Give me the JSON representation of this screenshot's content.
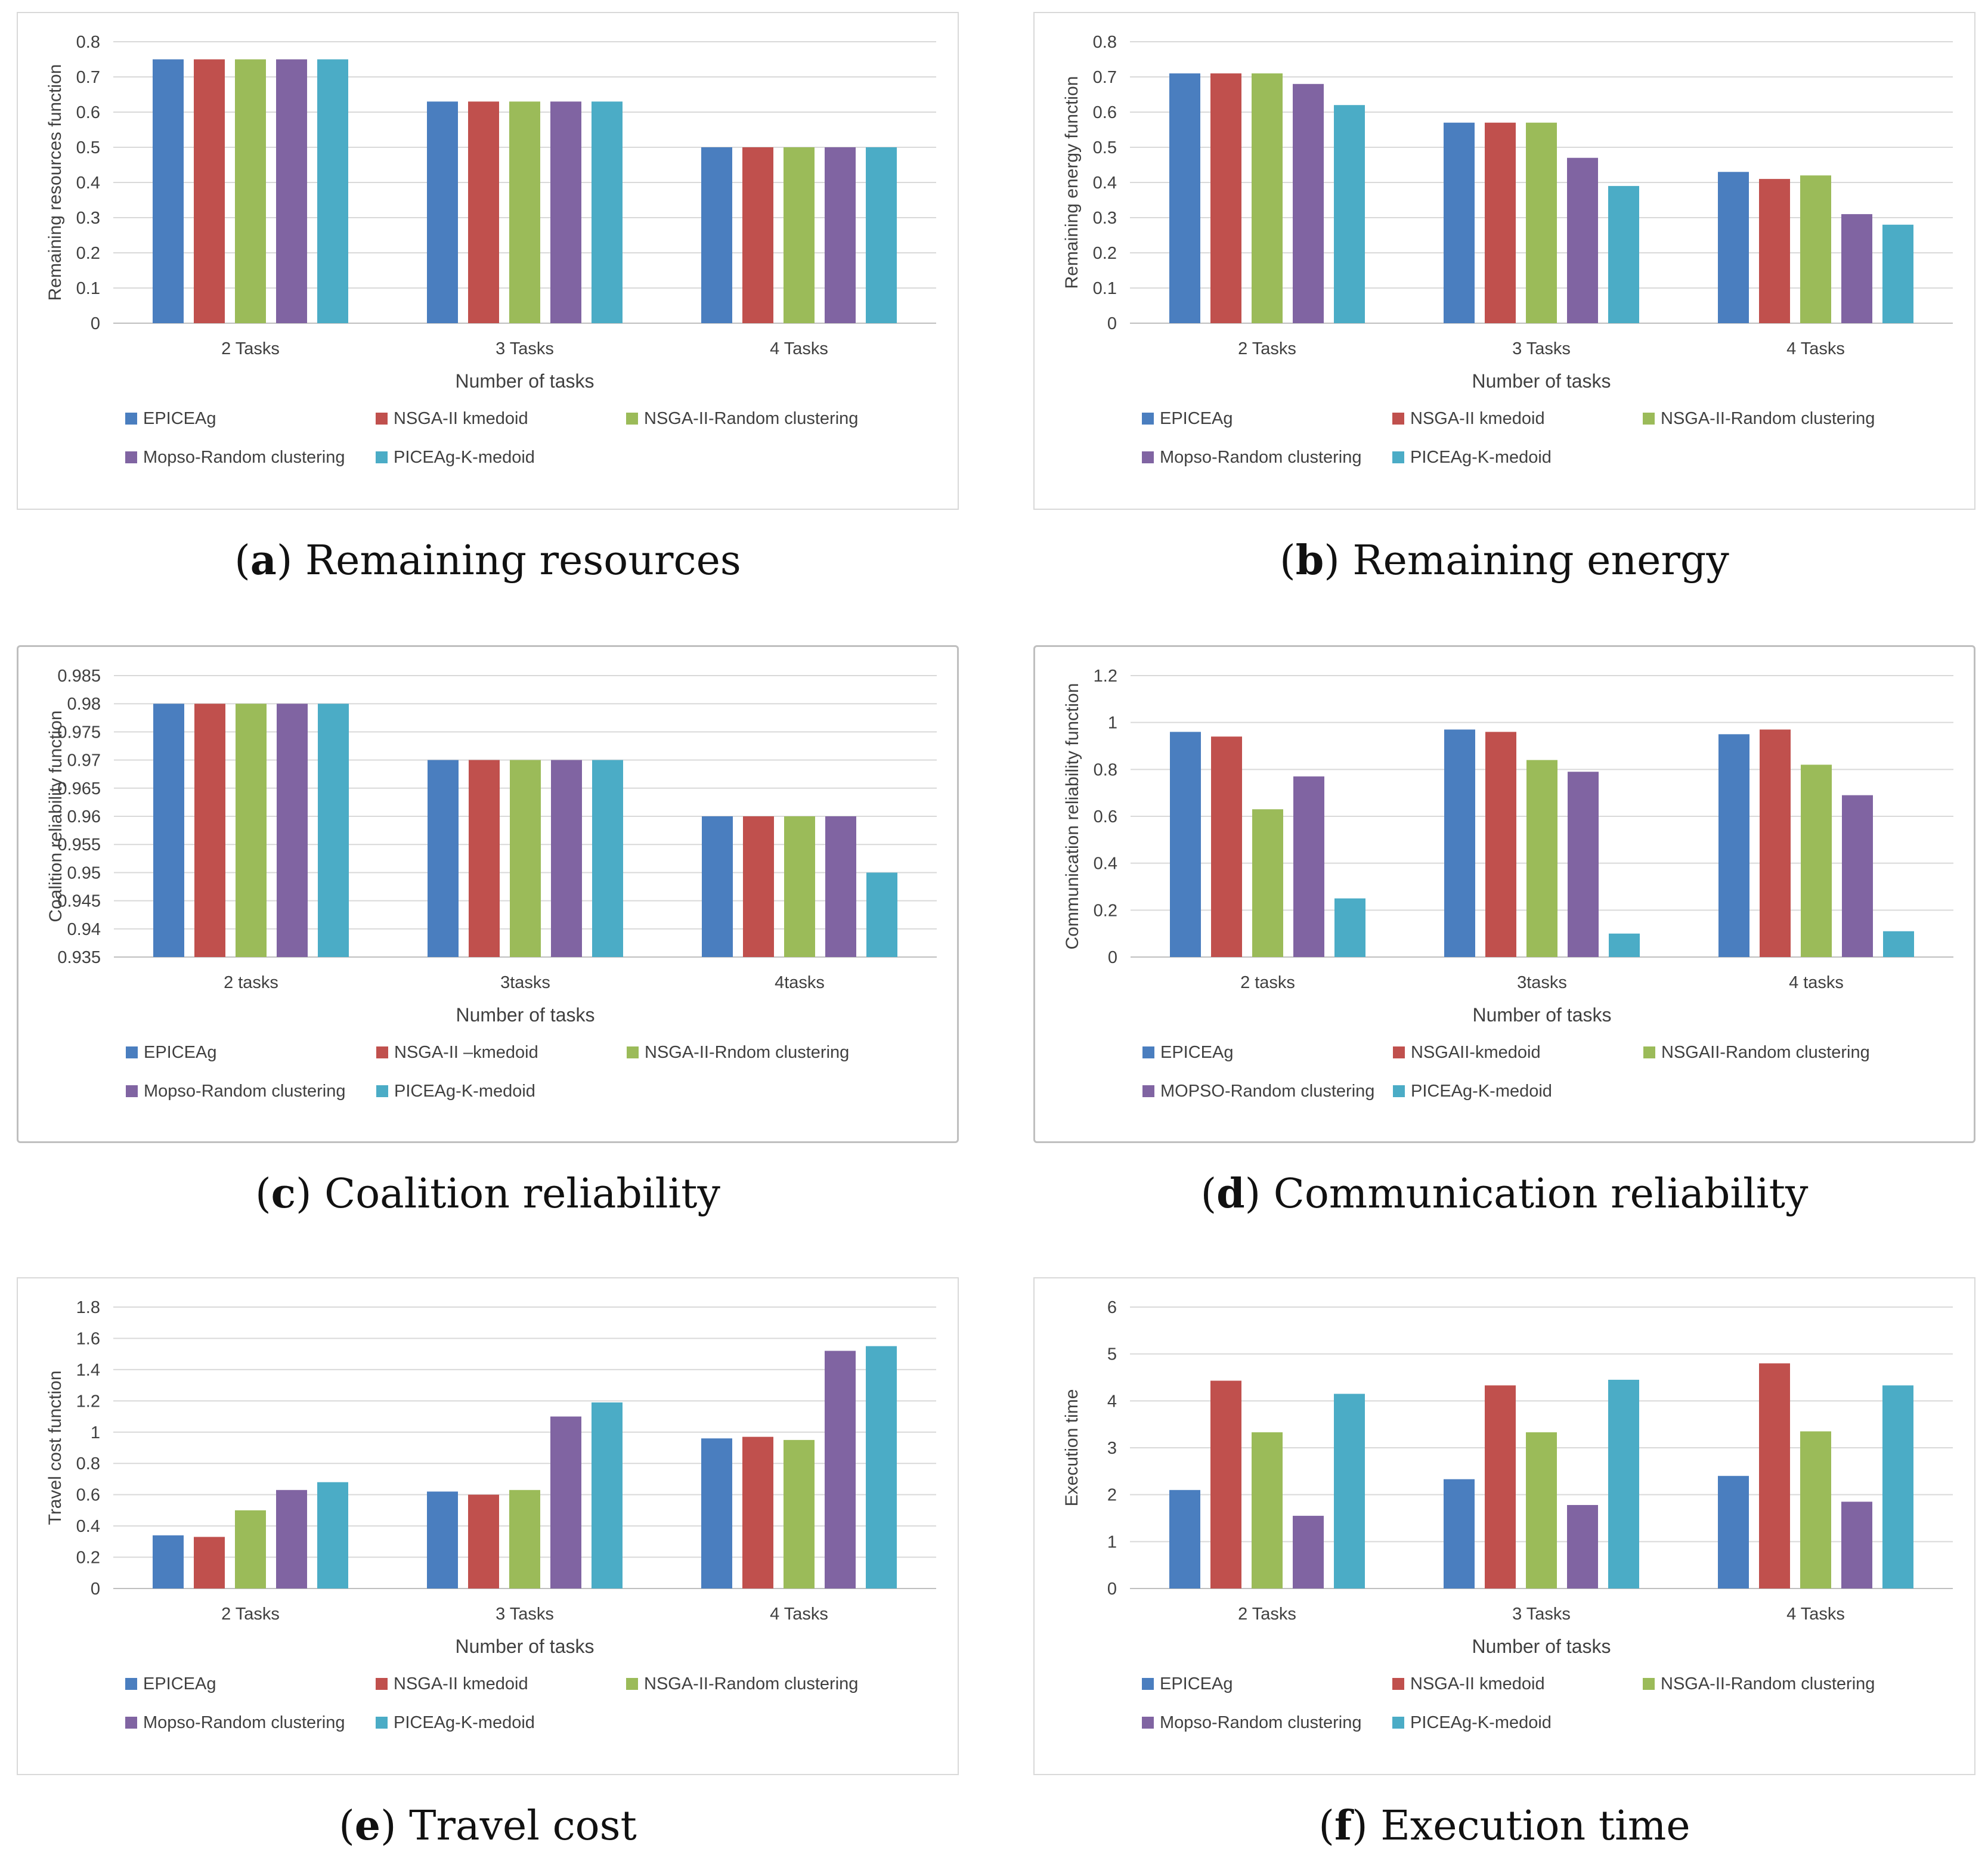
{
  "legend": {
    "standard": [
      "EPICEAg",
      "NSGA-II kmedoid",
      "NSGA-II-Random clustering",
      "Mopso-Random clustering",
      "PICEAg-K-medoid"
    ]
  },
  "colors": [
    "#4a7ebf",
    "#c0504d",
    "#9bbb59",
    "#8064a2",
    "#4bacc6"
  ],
  "panels": [
    {
      "caption_letter": "a",
      "caption_text": "Remaining resources",
      "chart_data": {
        "type": "bar",
        "categories": [
          "2 Tasks",
          "3 Tasks",
          "4 Tasks"
        ],
        "xlabel": "Number of tasks",
        "ylabel": "Remaining resources function",
        "ylim": [
          0,
          0.8
        ],
        "yticks": [
          "0",
          "0.1",
          "0.2",
          "0.3",
          "0.4",
          "0.5",
          "0.6",
          "0.7",
          "0.8"
        ],
        "legend": [
          "EPICEAg",
          "NSGA-II kmedoid",
          "NSGA-II-Random clustering",
          "Mopso-Random clustering",
          "PICEAg-K-medoid"
        ],
        "series": [
          {
            "name": "EPICEAg",
            "values": [
              0.75,
              0.63,
              0.5
            ]
          },
          {
            "name": "NSGA-II kmedoid",
            "values": [
              0.75,
              0.63,
              0.5
            ]
          },
          {
            "name": "NSGA-II-Random clustering",
            "values": [
              0.75,
              0.63,
              0.5
            ]
          },
          {
            "name": "Mopso-Random clustering",
            "values": [
              0.75,
              0.63,
              0.5
            ]
          },
          {
            "name": "PICEAg-K-medoid",
            "values": [
              0.75,
              0.63,
              0.5
            ]
          }
        ],
        "grid": true,
        "legend_position": "bottom"
      }
    },
    {
      "caption_letter": "b",
      "caption_text": "Remaining energy",
      "chart_data": {
        "type": "bar",
        "categories": [
          "2 Tasks",
          "3 Tasks",
          "4 Tasks"
        ],
        "xlabel": "Number of tasks",
        "ylabel": "Remaining energy function",
        "ylim": [
          0,
          0.8
        ],
        "yticks": [
          "0",
          "0.1",
          "0.2",
          "0.3",
          "0.4",
          "0.5",
          "0.6",
          "0.7",
          "0.8"
        ],
        "legend": [
          "EPICEAg",
          "NSGA-II kmedoid",
          "NSGA-II-Random clustering",
          "Mopso-Random clustering",
          "PICEAg-K-medoid"
        ],
        "series": [
          {
            "name": "EPICEAg",
            "values": [
              0.71,
              0.57,
              0.43
            ]
          },
          {
            "name": "NSGA-II kmedoid",
            "values": [
              0.71,
              0.57,
              0.41
            ]
          },
          {
            "name": "NSGA-II-Random clustering",
            "values": [
              0.71,
              0.57,
              0.42
            ]
          },
          {
            "name": "Mopso-Random clustering",
            "values": [
              0.68,
              0.47,
              0.31
            ]
          },
          {
            "name": "PICEAg-K-medoid",
            "values": [
              0.62,
              0.39,
              0.28
            ]
          }
        ],
        "grid": true,
        "legend_position": "bottom"
      }
    },
    {
      "caption_letter": "c",
      "caption_text": "Coalition reliability",
      "chart_data": {
        "type": "bar",
        "categories": [
          "2 tasks",
          "3tasks",
          "4tasks"
        ],
        "xlabel": "Number of tasks",
        "ylabel": "Coalition reliability function",
        "ylim": [
          0.935,
          0.985
        ],
        "yticks": [
          "0.935",
          "0.94",
          "0.945",
          "0.95",
          "0.955",
          "0.96",
          "0.965",
          "0.97",
          "0.975",
          "0.98",
          "0.985"
        ],
        "legend": [
          "EPICEAg",
          "NSGA-II –kmedoid",
          "NSGA-II-Rndom clustering",
          "Mopso-Random clustering",
          "PICEAg-K-medoid"
        ],
        "series": [
          {
            "name": "EPICEAg",
            "values": [
              0.98,
              0.97,
              0.96
            ]
          },
          {
            "name": "NSGA-II –kmedoid",
            "values": [
              0.98,
              0.97,
              0.96
            ]
          },
          {
            "name": "NSGA-II-Rndom clustering",
            "values": [
              0.98,
              0.97,
              0.96
            ]
          },
          {
            "name": "Mopso-Random clustering",
            "values": [
              0.98,
              0.97,
              0.96
            ]
          },
          {
            "name": "PICEAg-K-medoid",
            "values": [
              0.98,
              0.97,
              0.95
            ]
          }
        ],
        "grid": true,
        "legend_position": "bottom"
      }
    },
    {
      "caption_letter": "d",
      "caption_text": "Communication reliability",
      "chart_data": {
        "type": "bar",
        "categories": [
          "2 tasks",
          "3tasks",
          "4 tasks"
        ],
        "xlabel": "Number of tasks",
        "ylabel": "Communication reliability function",
        "ylim": [
          0,
          1.2
        ],
        "yticks": [
          "0",
          "0.2",
          "0.4",
          "0.6",
          "0.8",
          "1",
          "1.2"
        ],
        "legend": [
          "EPICEAg",
          "NSGAII-kmedoid",
          "NSGAII-Random clustering",
          "MOPSO-Random clustering",
          "PICEAg-K-medoid"
        ],
        "series": [
          {
            "name": "EPICEAg",
            "values": [
              0.96,
              0.97,
              0.95
            ]
          },
          {
            "name": "NSGAII-kmedoid",
            "values": [
              0.94,
              0.96,
              0.97
            ]
          },
          {
            "name": "NSGAII-Random clustering",
            "values": [
              0.63,
              0.84,
              0.82
            ]
          },
          {
            "name": "MOPSO-Random clustering",
            "values": [
              0.77,
              0.79,
              0.69
            ]
          },
          {
            "name": "PICEAg-K-medoid",
            "values": [
              0.25,
              0.1,
              0.11
            ]
          }
        ],
        "grid": true,
        "legend_position": "bottom"
      }
    },
    {
      "caption_letter": "e",
      "caption_text": "Travel cost",
      "chart_data": {
        "type": "bar",
        "categories": [
          "2 Tasks",
          "3 Tasks",
          "4 Tasks"
        ],
        "xlabel": "Number of tasks",
        "ylabel": "Travel cost function",
        "ylim": [
          0,
          1.8
        ],
        "yticks": [
          "0",
          "0.2",
          "0.4",
          "0.6",
          "0.8",
          "1",
          "1.2",
          "1.4",
          "1.6",
          "1.8"
        ],
        "legend": [
          "EPICEAg",
          "NSGA-II kmedoid",
          "NSGA-II-Random clustering",
          "Mopso-Random clustering",
          "PICEAg-K-medoid"
        ],
        "series": [
          {
            "name": "EPICEAg",
            "values": [
              0.34,
              0.62,
              0.96
            ]
          },
          {
            "name": "NSGA-II kmedoid",
            "values": [
              0.33,
              0.6,
              0.97
            ]
          },
          {
            "name": "NSGA-II-Random clustering",
            "values": [
              0.5,
              0.63,
              0.95
            ]
          },
          {
            "name": "Mopso-Random clustering",
            "values": [
              0.63,
              1.1,
              1.52
            ]
          },
          {
            "name": "PICEAg-K-medoid",
            "values": [
              0.68,
              1.19,
              1.55
            ]
          }
        ],
        "grid": true,
        "legend_position": "bottom"
      }
    },
    {
      "caption_letter": "f",
      "caption_text": "Execution time",
      "chart_data": {
        "type": "bar",
        "categories": [
          "2 Tasks",
          "3 Tasks",
          "4 Tasks"
        ],
        "xlabel": "Number of tasks",
        "ylabel": "Execution time",
        "ylim": [
          0,
          6
        ],
        "yticks": [
          "0",
          "1",
          "2",
          "3",
          "4",
          "5",
          "6"
        ],
        "legend": [
          "EPICEAg",
          "NSGA-II kmedoid",
          "NSGA-II-Random clustering",
          "Mopso-Random clustering",
          "PICEAg-K-medoid"
        ],
        "series": [
          {
            "name": "EPICEAg",
            "values": [
              2.1,
              2.33,
              2.4
            ]
          },
          {
            "name": "NSGA-II kmedoid",
            "values": [
              4.43,
              4.33,
              4.8
            ]
          },
          {
            "name": "NSGA-II-Random clustering",
            "values": [
              3.33,
              3.33,
              3.35
            ]
          },
          {
            "name": "Mopso-Random clustering",
            "values": [
              1.55,
              1.78,
              1.85
            ]
          },
          {
            "name": "PICEAg-K-medoid",
            "values": [
              4.15,
              4.45,
              4.33
            ]
          }
        ],
        "grid": true,
        "legend_position": "bottom"
      }
    }
  ]
}
